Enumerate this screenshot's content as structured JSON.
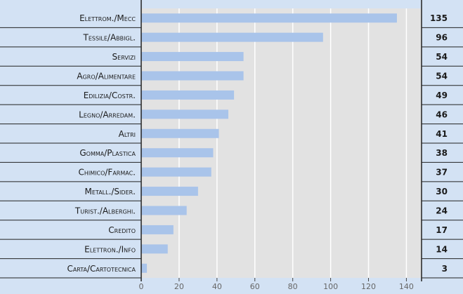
{
  "chart_data": {
    "type": "bar",
    "orientation": "horizontal",
    "categories": [
      "Elettrom./Mecc",
      "Tessile/Abbigl.",
      "Servizi",
      "Agro/Alimentare",
      "Edilizia/Costr.",
      "Legno/Arredam.",
      "Altri",
      "Gomma/Plastica",
      "Chimico/Farmac.",
      "Metall./Sider.",
      "Turist./Alberghi.",
      "Credito",
      "Elettron./Info",
      "Carta/Cartotecnica"
    ],
    "values": [
      135,
      96,
      54,
      54,
      49,
      46,
      41,
      38,
      37,
      30,
      24,
      17,
      14,
      3
    ],
    "color": "#a9c4ea",
    "xlim": [
      0,
      148
    ],
    "xticks": [
      0,
      20,
      40,
      60,
      80,
      100,
      120,
      140
    ],
    "grid": true
  }
}
